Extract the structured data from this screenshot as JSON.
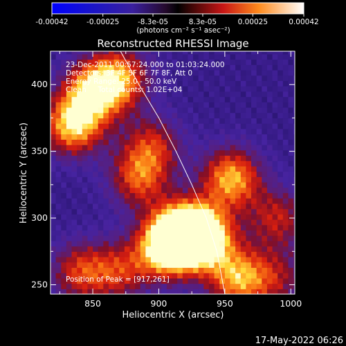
{
  "chart_data": {
    "type": "heatmap",
    "title": "Reconstructed RHESSI Image",
    "xlabel": "Heliocentric X (arcsec)",
    "ylabel": "Heliocentric Y (arcsec)",
    "xlim": [
      818,
      1003
    ],
    "ylim": [
      243,
      425
    ],
    "xticks": [
      850,
      900,
      950,
      1000
    ],
    "yticks": [
      250,
      300,
      350,
      400
    ],
    "colorbar": {
      "ticks": [
        "-0.00042",
        "-0.00025",
        "-8.3e-05",
        "8.3e-05",
        "0.00025",
        "0.00042"
      ],
      "range": [
        -0.00042,
        0.00042
      ],
      "unit_label": "(photons cm⁻² s⁻¹ asec⁻²)"
    },
    "annotations": [
      "23-Dec-2011 00:57:24.000 to 01:03:24.000",
      "Detectors: 3F 4F 5F 6F 7F 8F, Att 0",
      "Energy Range: 25.0 - 50.0 keV",
      "Clean     Total counts: 1.02E+04"
    ],
    "peak_label": "Position of Peak = [917,261]",
    "limb_curve_x_at_y": [
      [
        871,
        425
      ],
      [
        885,
        400
      ],
      [
        900,
        375
      ],
      [
        913,
        350
      ],
      [
        925,
        325
      ],
      [
        936,
        300
      ],
      [
        944,
        275
      ],
      [
        950,
        243
      ]
    ],
    "intensity_sources": [
      {
        "x": 920,
        "y": 290,
        "level": 1.0
      },
      {
        "x": 905,
        "y": 278,
        "level": 0.85
      },
      {
        "x": 935,
        "y": 285,
        "level": 0.8
      },
      {
        "x": 960,
        "y": 255,
        "level": 0.7
      },
      {
        "x": 955,
        "y": 330,
        "level": 0.75
      },
      {
        "x": 835,
        "y": 370,
        "level": 0.8
      },
      {
        "x": 850,
        "y": 395,
        "level": 0.7
      },
      {
        "x": 870,
        "y": 405,
        "level": 0.65
      },
      {
        "x": 885,
        "y": 330,
        "level": 0.55
      },
      {
        "x": 840,
        "y": 260,
        "level": 0.5
      },
      {
        "x": 870,
        "y": 260,
        "level": 0.45
      },
      {
        "x": 895,
        "y": 355,
        "level": 0.45
      },
      {
        "x": 990,
        "y": 300,
        "level": 0.45
      },
      {
        "x": 990,
        "y": 255,
        "level": 0.35
      }
    ]
  },
  "footer": {
    "timestamp": "17-May-2022 06:26"
  }
}
